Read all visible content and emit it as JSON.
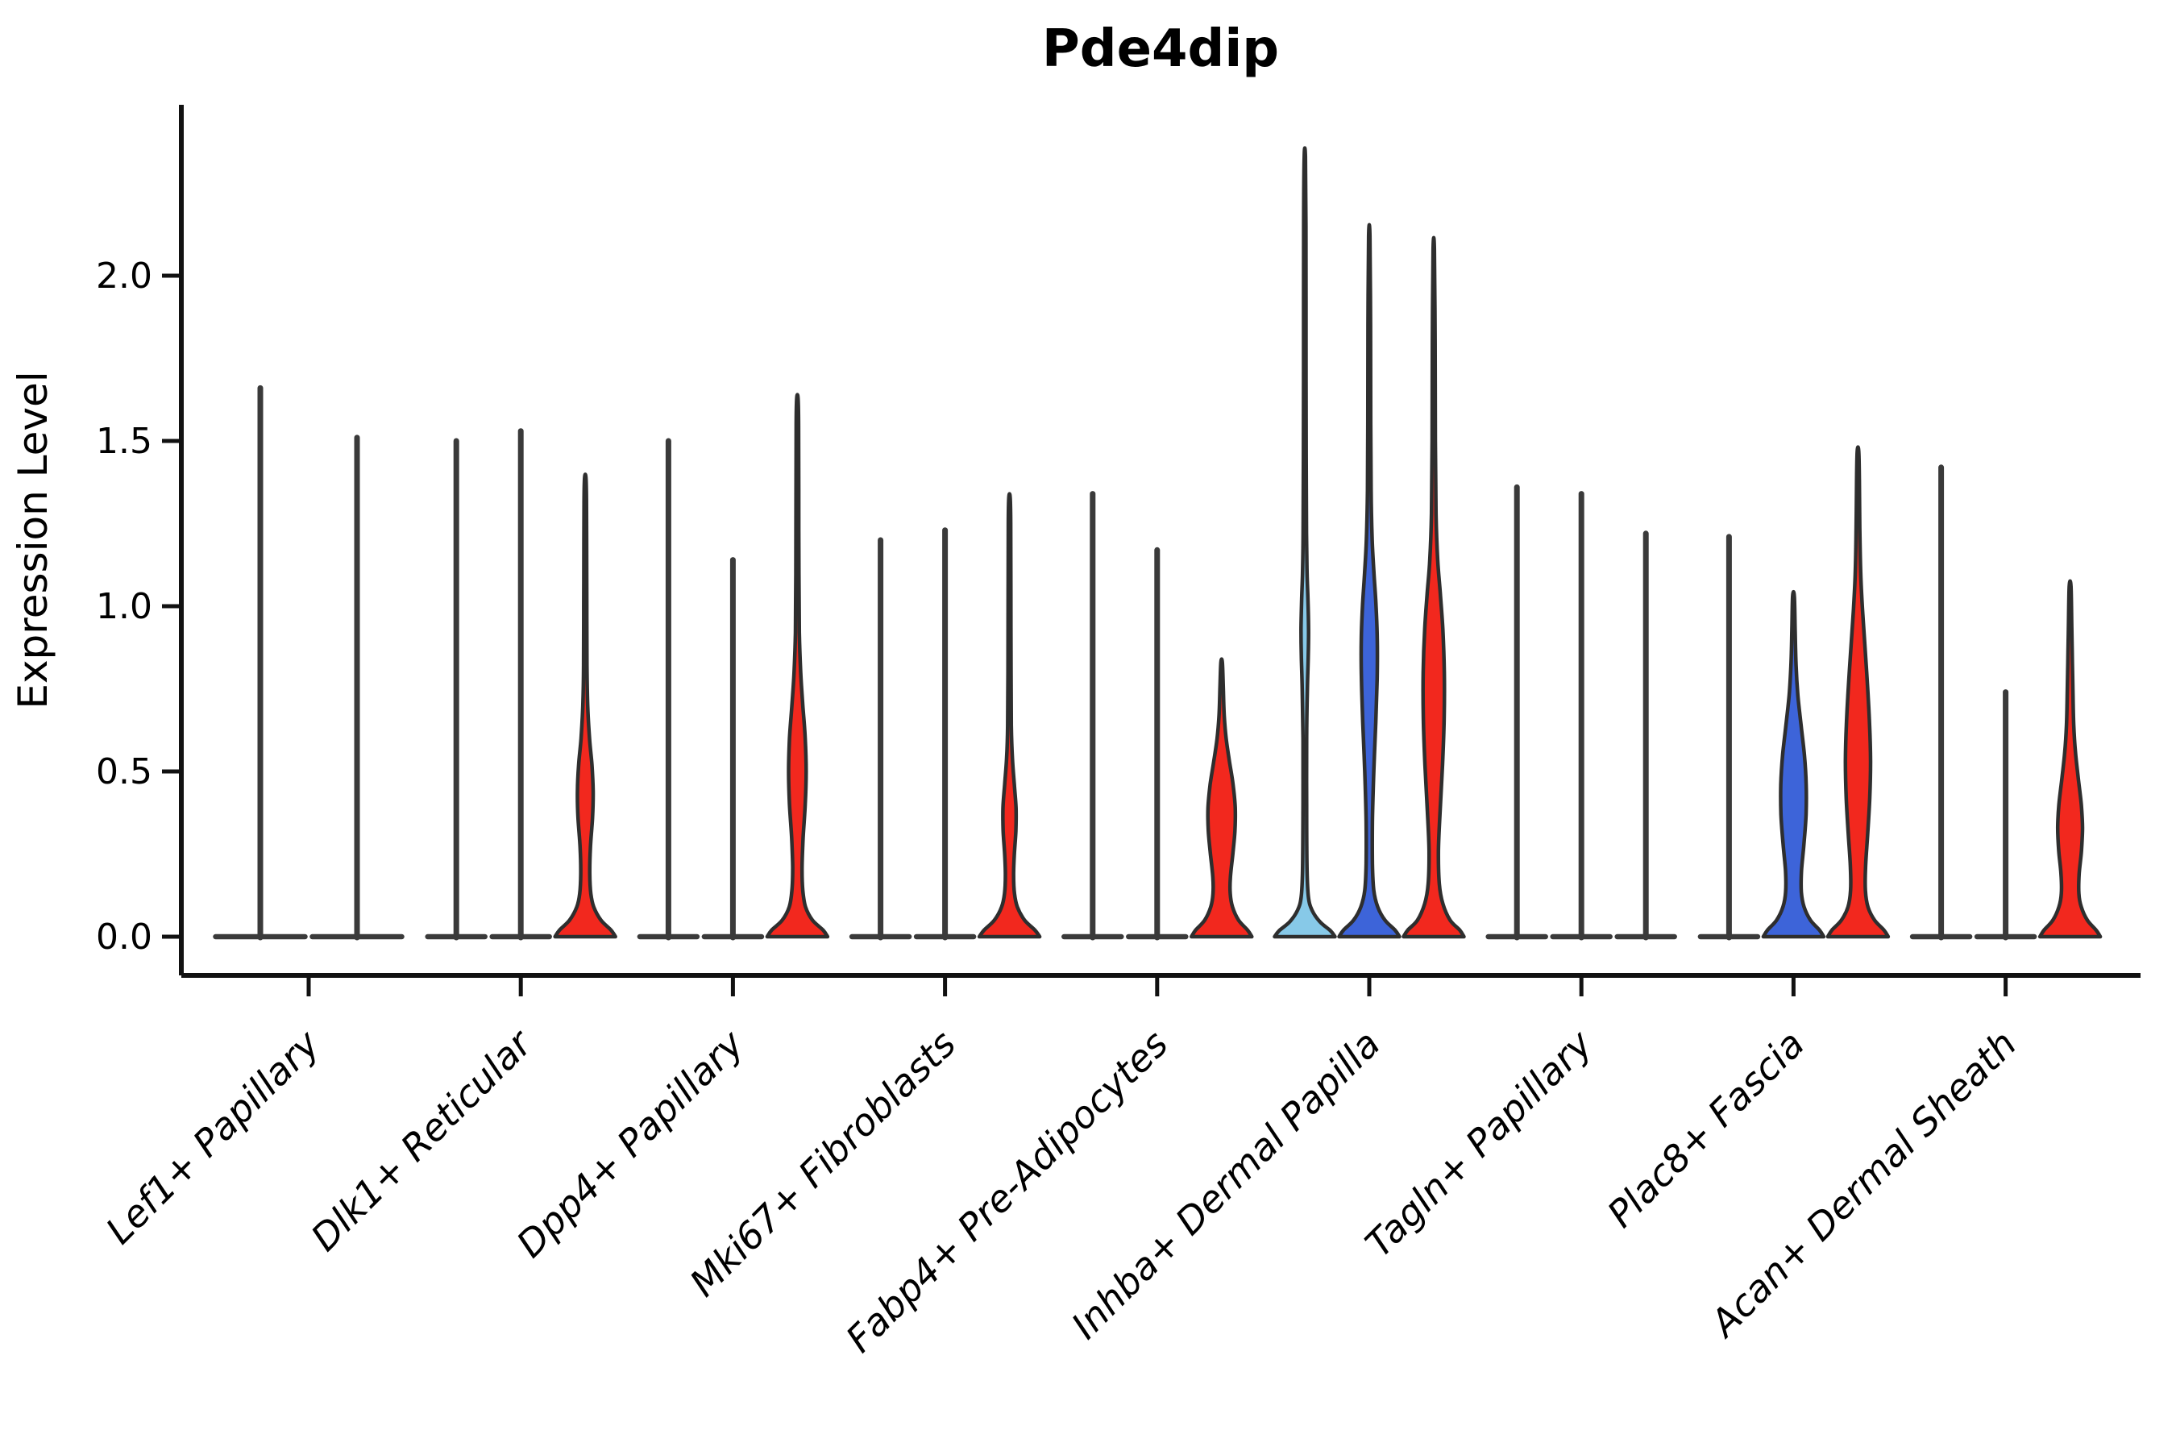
{
  "page": {
    "background": "#ffffff"
  },
  "chart_data": {
    "type": "violin",
    "title": "Pde4dip",
    "ylabel": "Expression Level",
    "xlabel": "",
    "ylim": [
      0,
      2.52
    ],
    "ytick_labels": [
      "0.0",
      "0.5",
      "1.0",
      "1.5",
      "2.0"
    ],
    "ytick_values": [
      0,
      0.5,
      1.0,
      1.5,
      2.0
    ],
    "grid": false,
    "legend": "none",
    "colors": {
      "split1_light_blue": "#87C9E8",
      "split2_royal_blue": "#3D64D9",
      "split3_red": "#F2281E",
      "outline": "#2E2E2E",
      "stem": "#3A3A3A",
      "spine": "#111111",
      "text": "#000000"
    },
    "categories": [
      "Lef1+ Papillary",
      "Dlk1+ Reticular",
      "Dpp4+ Papillary",
      "Mki67+ Fibroblasts",
      "Fabp4+ Pre-Adipocytes",
      "Inhba+ Dermal Papilla",
      "Tagln+ Papillary",
      "Plac8+ Fascia",
      "Acan+ Dermal Sheath"
    ],
    "groups": [
      {
        "label": "Lef1+ Papillary",
        "violins": [
          {
            "split": 1,
            "color_key": "split1_light_blue",
            "style": "stem",
            "max": 1.66
          },
          {
            "split": 2,
            "color_key": "split2_royal_blue",
            "style": "stem",
            "max": 1.51
          }
        ]
      },
      {
        "label": "Dlk1+ Reticular",
        "violins": [
          {
            "split": 1,
            "color_key": "split1_light_blue",
            "style": "stem",
            "max": 1.5
          },
          {
            "split": 2,
            "color_key": "split2_royal_blue",
            "style": "stem",
            "max": 1.53
          },
          {
            "split": 3,
            "color_key": "split3_red",
            "style": "shaped",
            "max": 1.39,
            "profile": [
              [
                0,
                1
              ],
              [
                0.02,
                0.85
              ],
              [
                0.05,
                0.52
              ],
              [
                0.09,
                0.28
              ],
              [
                0.13,
                0.185
              ],
              [
                0.19,
                0.15
              ],
              [
                0.27,
                0.17
              ],
              [
                0.36,
                0.24
              ],
              [
                0.44,
                0.26
              ],
              [
                0.52,
                0.22
              ],
              [
                0.6,
                0.14
              ],
              [
                0.7,
                0.08
              ],
              [
                0.82,
                0.055
              ],
              [
                1.0,
                0.05
              ],
              [
                1.2,
                0.045
              ],
              [
                1.32,
                0.04
              ],
              [
                1.39,
                0.022
              ]
            ]
          }
        ]
      },
      {
        "label": "Dpp4+ Papillary",
        "violins": [
          {
            "split": 1,
            "color_key": "split1_light_blue",
            "style": "stem",
            "max": 1.5
          },
          {
            "split": 2,
            "color_key": "split2_royal_blue",
            "style": "stem",
            "max": 1.14
          },
          {
            "split": 3,
            "color_key": "split3_red",
            "style": "shaped",
            "max": 1.63,
            "profile": [
              [
                0,
                1
              ],
              [
                0.02,
                0.85
              ],
              [
                0.05,
                0.5
              ],
              [
                0.09,
                0.27
              ],
              [
                0.14,
                0.18
              ],
              [
                0.21,
                0.155
              ],
              [
                0.3,
                0.19
              ],
              [
                0.4,
                0.26
              ],
              [
                0.5,
                0.29
              ],
              [
                0.6,
                0.26
              ],
              [
                0.7,
                0.18
              ],
              [
                0.8,
                0.11
              ],
              [
                0.92,
                0.065
              ],
              [
                1.1,
                0.05
              ],
              [
                1.35,
                0.045
              ],
              [
                1.55,
                0.04
              ],
              [
                1.63,
                0.022
              ]
            ]
          }
        ]
      },
      {
        "label": "Mki67+ Fibroblasts",
        "violins": [
          {
            "split": 1,
            "color_key": "split1_light_blue",
            "style": "stem",
            "max": 1.2
          },
          {
            "split": 2,
            "color_key": "split2_royal_blue",
            "style": "stem",
            "max": 1.23
          },
          {
            "split": 3,
            "color_key": "split3_red",
            "style": "shaped",
            "max": 1.33,
            "profile": [
              [
                0,
                1
              ],
              [
                0.02,
                0.84
              ],
              [
                0.05,
                0.5
              ],
              [
                0.09,
                0.26
              ],
              [
                0.13,
                0.165
              ],
              [
                0.185,
                0.135
              ],
              [
                0.25,
                0.16
              ],
              [
                0.32,
                0.21
              ],
              [
                0.39,
                0.215
              ],
              [
                0.46,
                0.16
              ],
              [
                0.54,
                0.095
              ],
              [
                0.64,
                0.06
              ],
              [
                0.8,
                0.05
              ],
              [
                1.05,
                0.045
              ],
              [
                1.25,
                0.04
              ],
              [
                1.33,
                0.022
              ]
            ]
          }
        ]
      },
      {
        "label": "Fabp4+ Pre-Adipocytes",
        "violins": [
          {
            "split": 1,
            "color_key": "split1_light_blue",
            "style": "stem",
            "max": 1.34
          },
          {
            "split": 2,
            "color_key": "split2_royal_blue",
            "style": "stem",
            "max": 1.17
          },
          {
            "split": 3,
            "color_key": "split3_red",
            "style": "shaped",
            "max": 0.83,
            "profile": [
              [
                0,
                1
              ],
              [
                0.02,
                0.86
              ],
              [
                0.05,
                0.56
              ],
              [
                0.09,
                0.36
              ],
              [
                0.13,
                0.285
              ],
              [
                0.18,
                0.29
              ],
              [
                0.25,
                0.37
              ],
              [
                0.32,
                0.44
              ],
              [
                0.39,
                0.45
              ],
              [
                0.46,
                0.38
              ],
              [
                0.53,
                0.26
              ],
              [
                0.6,
                0.15
              ],
              [
                0.67,
                0.085
              ],
              [
                0.75,
                0.055
              ],
              [
                0.83,
                0.025
              ]
            ]
          }
        ]
      },
      {
        "label": "Inhba+ Dermal Papilla",
        "violins": [
          {
            "split": 1,
            "color_key": "split1_light_blue",
            "style": "shaped",
            "max": 2.36,
            "profile": [
              [
                0,
                1
              ],
              [
                0.018,
                0.85
              ],
              [
                0.045,
                0.5
              ],
              [
                0.08,
                0.24
              ],
              [
                0.12,
                0.12
              ],
              [
                0.2,
                0.075
              ],
              [
                0.4,
                0.06
              ],
              [
                0.6,
                0.06
              ],
              [
                0.75,
                0.085
              ],
              [
                0.85,
                0.115
              ],
              [
                0.93,
                0.125
              ],
              [
                1.02,
                0.105
              ],
              [
                1.1,
                0.075
              ],
              [
                1.22,
                0.055
              ],
              [
                1.45,
                0.045
              ],
              [
                1.8,
                0.04
              ],
              [
                2.15,
                0.038
              ],
              [
                2.36,
                0.02
              ]
            ]
          },
          {
            "split": 2,
            "color_key": "split2_royal_blue",
            "style": "shaped",
            "max": 2.12,
            "profile": [
              [
                0,
                1
              ],
              [
                0.02,
                0.85
              ],
              [
                0.05,
                0.52
              ],
              [
                0.09,
                0.28
              ],
              [
                0.14,
                0.15
              ],
              [
                0.22,
                0.105
              ],
              [
                0.35,
                0.105
              ],
              [
                0.5,
                0.15
              ],
              [
                0.65,
                0.215
              ],
              [
                0.78,
                0.26
              ],
              [
                0.9,
                0.265
              ],
              [
                1.0,
                0.225
              ],
              [
                1.1,
                0.155
              ],
              [
                1.2,
                0.095
              ],
              [
                1.35,
                0.06
              ],
              [
                1.55,
                0.048
              ],
              [
                1.85,
                0.042
              ],
              [
                2.12,
                0.022
              ]
            ]
          },
          {
            "split": 3,
            "color_key": "split3_red",
            "style": "shaped",
            "max": 2.08,
            "profile": [
              [
                0,
                1
              ],
              [
                0.02,
                0.86
              ],
              [
                0.05,
                0.54
              ],
              [
                0.1,
                0.3
              ],
              [
                0.16,
                0.185
              ],
              [
                0.26,
                0.155
              ],
              [
                0.38,
                0.21
              ],
              [
                0.52,
                0.29
              ],
              [
                0.66,
                0.345
              ],
              [
                0.8,
                0.35
              ],
              [
                0.93,
                0.3
              ],
              [
                1.04,
                0.215
              ],
              [
                1.14,
                0.13
              ],
              [
                1.28,
                0.075
              ],
              [
                1.5,
                0.052
              ],
              [
                1.8,
                0.045
              ],
              [
                2.08,
                0.022
              ]
            ]
          }
        ]
      },
      {
        "label": "Tagln+ Papillary",
        "violins": [
          {
            "split": 1,
            "color_key": "split1_light_blue",
            "style": "stem",
            "max": 1.36
          },
          {
            "split": 2,
            "color_key": "split2_royal_blue",
            "style": "stem",
            "max": 1.34
          },
          {
            "split": 3,
            "color_key": "split3_red",
            "style": "stem",
            "max": 1.22
          }
        ]
      },
      {
        "label": "Plac8+ Fascia",
        "violins": [
          {
            "split": 1,
            "color_key": "split1_light_blue",
            "style": "stem",
            "max": 1.21
          },
          {
            "split": 2,
            "color_key": "split2_royal_blue",
            "style": "shaped",
            "max": 1.03,
            "profile": [
              [
                0,
                1
              ],
              [
                0.02,
                0.86
              ],
              [
                0.05,
                0.56
              ],
              [
                0.09,
                0.35
              ],
              [
                0.135,
                0.26
              ],
              [
                0.2,
                0.265
              ],
              [
                0.28,
                0.345
              ],
              [
                0.37,
                0.415
              ],
              [
                0.46,
                0.42
              ],
              [
                0.55,
                0.36
              ],
              [
                0.64,
                0.25
              ],
              [
                0.73,
                0.145
              ],
              [
                0.82,
                0.085
              ],
              [
                0.92,
                0.055
              ],
              [
                1.03,
                0.028
              ]
            ]
          },
          {
            "split": 3,
            "color_key": "split3_red",
            "style": "shaped",
            "max": 1.47,
            "profile": [
              [
                0,
                1
              ],
              [
                0.02,
                0.86
              ],
              [
                0.05,
                0.55
              ],
              [
                0.09,
                0.33
              ],
              [
                0.14,
                0.245
              ],
              [
                0.21,
                0.25
              ],
              [
                0.31,
                0.32
              ],
              [
                0.42,
                0.39
              ],
              [
                0.53,
                0.415
              ],
              [
                0.64,
                0.385
              ],
              [
                0.76,
                0.315
              ],
              [
                0.88,
                0.23
              ],
              [
                0.99,
                0.15
              ],
              [
                1.1,
                0.09
              ],
              [
                1.24,
                0.06
              ],
              [
                1.38,
                0.045
              ],
              [
                1.47,
                0.025
              ]
            ]
          }
        ]
      },
      {
        "label": "Acan+ Dermal Sheath",
        "violins": [
          {
            "split": 1,
            "color_key": "split1_light_blue",
            "style": "stem",
            "max": 1.42
          },
          {
            "split": 2,
            "color_key": "split2_royal_blue",
            "style": "stem",
            "max": 0.74
          },
          {
            "split": 3,
            "color_key": "split3_red",
            "style": "shaped",
            "max": 1.06,
            "profile": [
              [
                0,
                1
              ],
              [
                0.02,
                0.86
              ],
              [
                0.05,
                0.57
              ],
              [
                0.09,
                0.37
              ],
              [
                0.13,
                0.29
              ],
              [
                0.19,
                0.3
              ],
              [
                0.26,
                0.375
              ],
              [
                0.33,
                0.41
              ],
              [
                0.4,
                0.37
              ],
              [
                0.48,
                0.27
              ],
              [
                0.56,
                0.175
              ],
              [
                0.64,
                0.12
              ],
              [
                0.73,
                0.095
              ],
              [
                0.83,
                0.075
              ],
              [
                0.93,
                0.055
              ],
              [
                1.06,
                0.028
              ]
            ]
          }
        ]
      }
    ]
  }
}
